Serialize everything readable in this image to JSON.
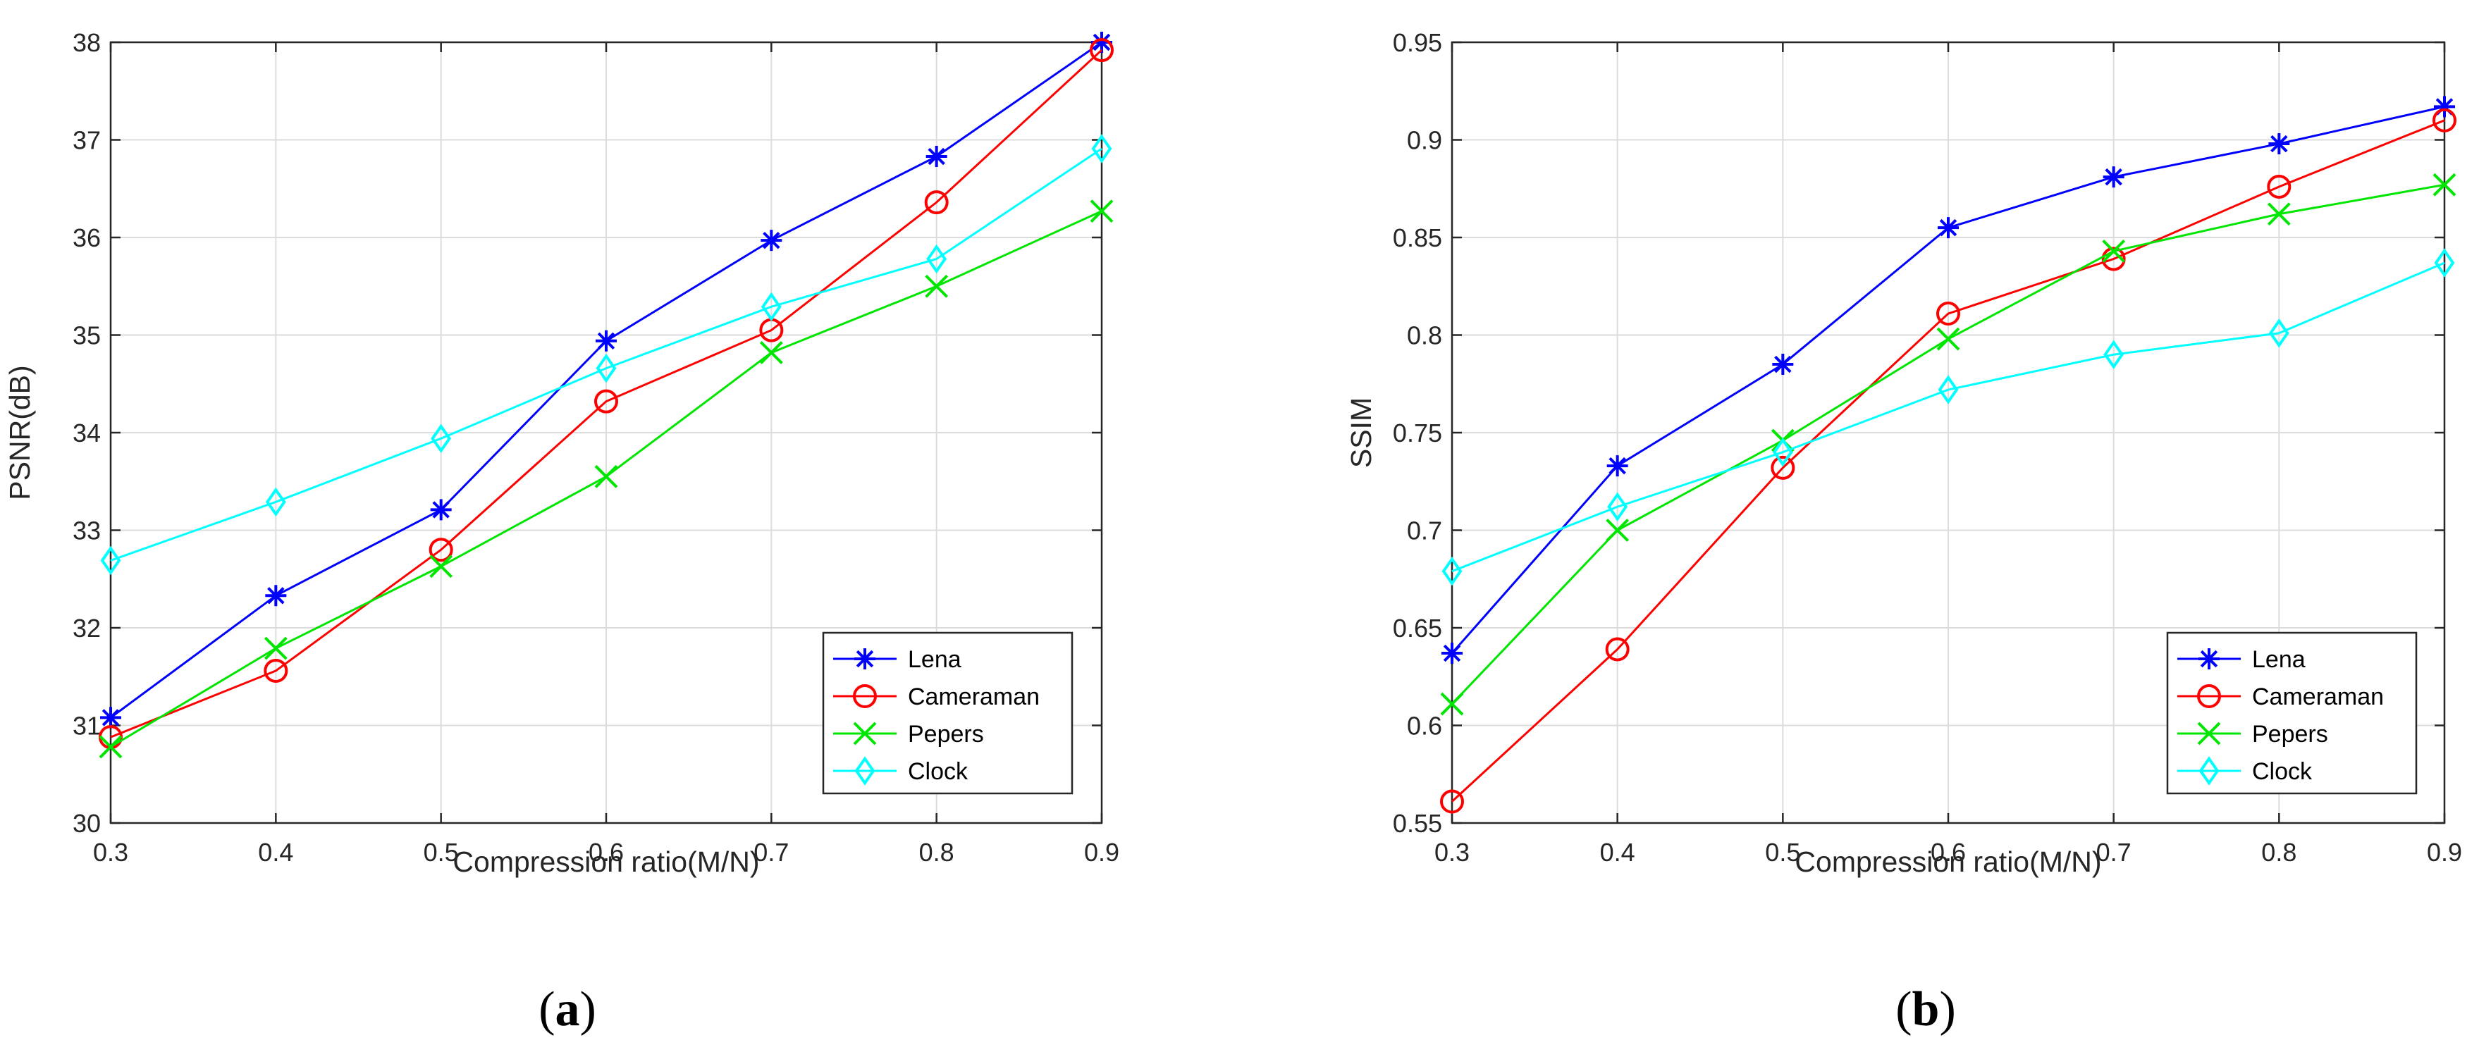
{
  "colors": {
    "Lena": "#0000ff",
    "Cameraman": "#ff0000",
    "Pepers": "#00e600",
    "Clock": "#00ffff"
  },
  "panel_labels": [
    {
      "open": "(",
      "letter": "a",
      "close": ")"
    },
    {
      "open": "(",
      "letter": "b",
      "close": ")"
    }
  ],
  "chart_data": [
    {
      "type": "line",
      "title": "",
      "xlabel": "Compression ratio(M/N)",
      "ylabel": "PSNR(dB)",
      "x": [
        0.3,
        0.4,
        0.5,
        0.6,
        0.7,
        0.8,
        0.9
      ],
      "xticks": [
        "0.3",
        "0.4",
        "0.5",
        "0.6",
        "0.7",
        "0.8",
        "0.9"
      ],
      "xlim": [
        0.3,
        0.9
      ],
      "ylim": [
        30,
        38
      ],
      "yticks": [
        "30",
        "31",
        "32",
        "33",
        "34",
        "35",
        "36",
        "37",
        "38"
      ],
      "yticks_values": [
        30,
        31,
        32,
        33,
        34,
        35,
        36,
        37,
        38
      ],
      "grid": true,
      "legend_position": "bottom-right",
      "series": [
        {
          "name": "Lena",
          "marker": "star",
          "values": [
            31.08,
            32.33,
            33.21,
            34.94,
            35.97,
            36.83,
            38.0
          ]
        },
        {
          "name": "Cameraman",
          "marker": "circle",
          "values": [
            30.88,
            31.56,
            32.8,
            34.32,
            35.05,
            36.36,
            37.92
          ]
        },
        {
          "name": "Pepers",
          "marker": "x",
          "values": [
            30.78,
            31.79,
            32.63,
            33.55,
            34.82,
            35.5,
            36.27
          ]
        },
        {
          "name": "Clock",
          "marker": "diamond",
          "values": [
            32.69,
            33.29,
            33.94,
            34.66,
            35.29,
            35.78,
            36.91
          ]
        }
      ]
    },
    {
      "type": "line",
      "title": "",
      "xlabel": "Compression ratio(M/N)",
      "ylabel": "SSIM",
      "x": [
        0.3,
        0.4,
        0.5,
        0.6,
        0.7,
        0.8,
        0.9
      ],
      "xticks": [
        "0.3",
        "0.4",
        "0.5",
        "0.6",
        "0.7",
        "0.8",
        "0.9"
      ],
      "xlim": [
        0.3,
        0.9
      ],
      "ylim": [
        0.55,
        0.95
      ],
      "yticks": [
        "0.55",
        "0.6",
        "0.65",
        "0.7",
        "0.75",
        "0.8",
        "0.85",
        "0.9",
        "0.95"
      ],
      "yticks_values": [
        0.55,
        0.6,
        0.65,
        0.7,
        0.75,
        0.8,
        0.85,
        0.9,
        0.95
      ],
      "grid": true,
      "legend_position": "bottom-right",
      "series": [
        {
          "name": "Lena",
          "marker": "star",
          "values": [
            0.637,
            0.733,
            0.785,
            0.855,
            0.881,
            0.898,
            0.917
          ]
        },
        {
          "name": "Cameraman",
          "marker": "circle",
          "values": [
            0.561,
            0.639,
            0.732,
            0.811,
            0.839,
            0.876,
            0.91
          ]
        },
        {
          "name": "Pepers",
          "marker": "x",
          "values": [
            0.611,
            0.7,
            0.746,
            0.798,
            0.843,
            0.862,
            0.877
          ]
        },
        {
          "name": "Clock",
          "marker": "diamond",
          "values": [
            0.679,
            0.712,
            0.74,
            0.772,
            0.79,
            0.801,
            0.837
          ]
        }
      ]
    }
  ]
}
